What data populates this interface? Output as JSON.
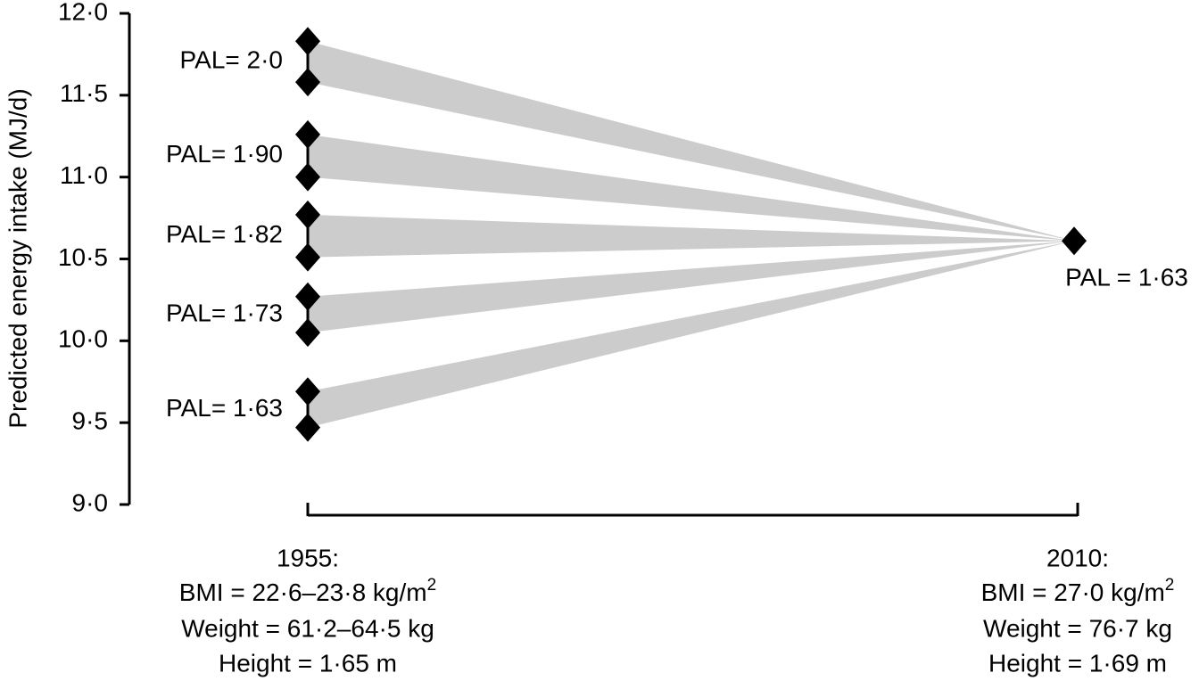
{
  "chart_data": {
    "type": "fan",
    "y_label": "Predicted energy intake (MJ/d)",
    "ylim": [
      9.0,
      12.0
    ],
    "yticks": [
      {
        "value": 9.0,
        "label": "9·0"
      },
      {
        "value": 9.5,
        "label": "9·5"
      },
      {
        "value": 10.0,
        "label": "10·0"
      },
      {
        "value": 10.5,
        "label": "10·5"
      },
      {
        "value": 11.0,
        "label": "11·0"
      },
      {
        "value": 11.5,
        "label": "11·5"
      },
      {
        "value": 12.0,
        "label": "12·0"
      }
    ],
    "band_color": "#cccccc",
    "marker_color": "#000000",
    "series": [
      {
        "name": "PAL= 2·0",
        "values": [
          11.83,
          11.58
        ]
      },
      {
        "name": "PAL= 1·90",
        "values": [
          11.26,
          11.0
        ]
      },
      {
        "name": "PAL= 1·82",
        "values": [
          10.77,
          10.51
        ]
      },
      {
        "name": "PAL= 1·73",
        "values": [
          10.27,
          10.05
        ]
      },
      {
        "name": "PAL= 1·63",
        "values": [
          9.69,
          9.47
        ]
      }
    ],
    "end": {
      "name": "PAL = 1·63",
      "value": 10.61
    },
    "periods": [
      {
        "label": "1955:",
        "bmi": "BMI = 22·6–23·8 kg/m",
        "bmi_sup": "2",
        "weight": "Weight = 61·2–64·5 kg",
        "height": "Height = 1·65 m"
      },
      {
        "label": "2010:",
        "bmi": "BMI = 27·0 kg/m",
        "bmi_sup": "2",
        "weight": "Weight = 76·7 kg",
        "height": "Height = 1·69 m"
      }
    ]
  }
}
